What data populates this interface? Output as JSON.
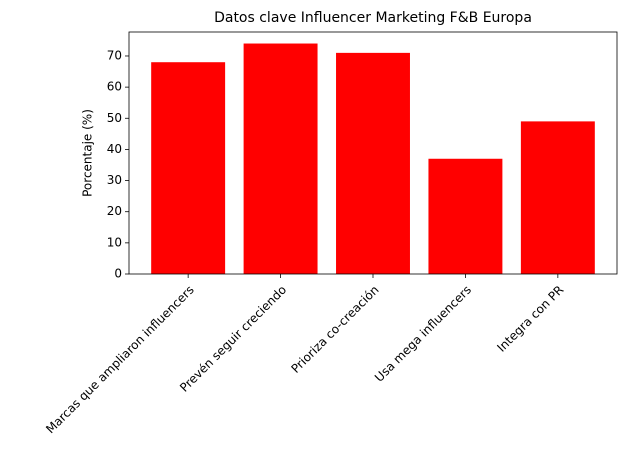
{
  "chart_data": {
    "type": "bar",
    "title": "Datos clave Influencer Marketing F&B Europa",
    "y_label": "Porcentaje (%)",
    "categories": [
      "Marcas que ampliaron influencers",
      "Prevén seguir creciendo",
      "Prioriza co-creación",
      "Usa mega influencers",
      "Integra con PR"
    ],
    "values": [
      68,
      74,
      71,
      37,
      49
    ],
    "color": "#ff0000",
    "ylim": [
      0,
      77.7
    ],
    "yticks": [
      0,
      10,
      20,
      30,
      40,
      50,
      60,
      70
    ],
    "grid": false
  }
}
